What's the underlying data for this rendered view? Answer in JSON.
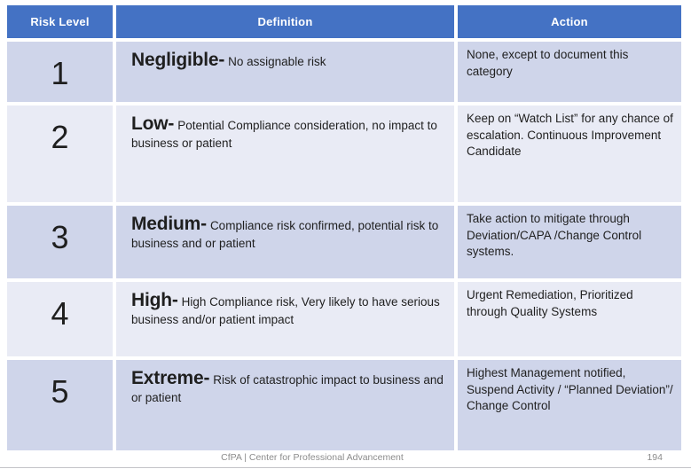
{
  "table": {
    "headers": [
      "Risk Level",
      "Definition",
      "Action"
    ],
    "rows": [
      {
        "level": "1",
        "term": "Negligible-",
        "definition": "No assignable risk",
        "action": "None, except to document this category"
      },
      {
        "level": "2",
        "term": "Low-",
        "definition": "Potential Compliance consideration, no impact to business or patient",
        "action": "Keep on “Watch List” for any chance of escalation. Continuous Improvement Candidate"
      },
      {
        "level": "3",
        "term": "Medium-",
        "definition": "Compliance risk confirmed, potential risk to business and or patient",
        "action": "Take action to mitigate through Deviation/CAPA /Change Control systems."
      },
      {
        "level": "4",
        "term": "High-",
        "definition": "High Compliance risk, Very likely to have serious business and/or patient impact",
        "action": "Urgent Remediation, Prioritized through Quality Systems"
      },
      {
        "level": "5",
        "term": "Extreme-",
        "definition": "Risk of catastrophic impact to business and or patient",
        "action": "Highest Management notified, Suspend Activity / “Planned Deviation”/ Change Control"
      }
    ]
  },
  "footer": {
    "text": "CfPA | Center for Professional Advancement",
    "page_number": "194"
  },
  "colors": {
    "header_bg": "#4472C4",
    "header_text": "#FFFFFF",
    "band_dark": "#CFD5EA",
    "band_light": "#E9EBF5",
    "body_text": "#1F1F1F",
    "footer_text": "#8C8C8C"
  }
}
